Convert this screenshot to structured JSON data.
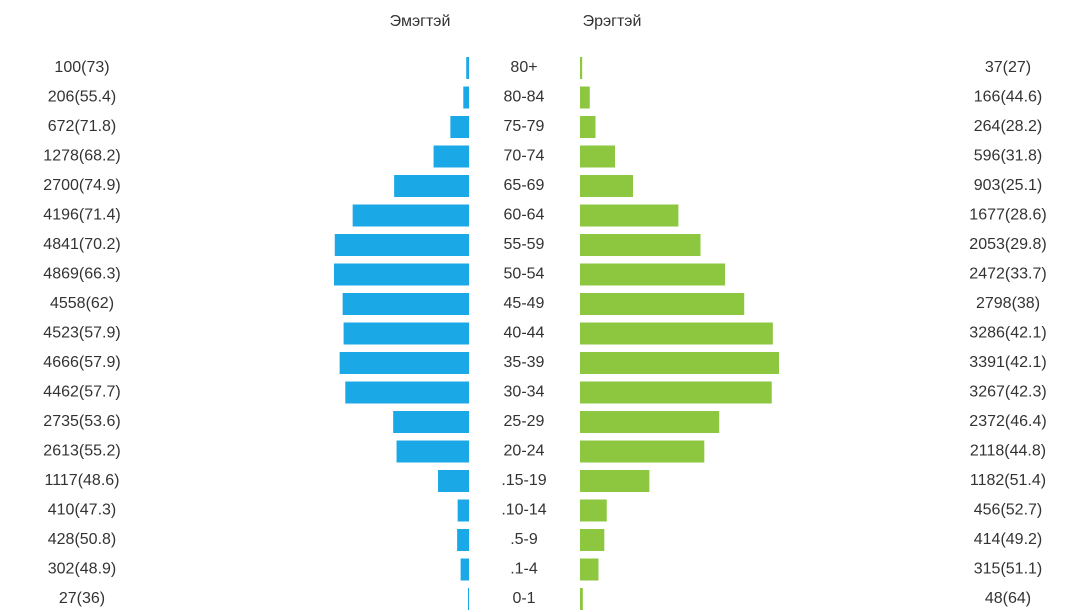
{
  "chart_data": {
    "type": "pyramid",
    "categories": [
      "80+",
      "80-84",
      "75-79",
      "70-74",
      "65-69",
      "60-64",
      "55-59",
      "50-54",
      "45-49",
      "40-44",
      "35-39",
      "30-34",
      "25-29",
      "20-24",
      ".15-19",
      ".10-14",
      ".5-9",
      ".1-4",
      "0-1"
    ],
    "series": [
      {
        "name": "Эмэгтэй",
        "color": "#1aa8e6",
        "values": [
          100,
          206,
          672,
          1278,
          2700,
          4196,
          4841,
          4869,
          4558,
          4523,
          4666,
          4462,
          2735,
          2613,
          1117,
          410,
          428,
          302,
          27
        ],
        "value_labels": [
          "100(73)",
          "206(55.4)",
          "672(71.8)",
          "1278(68.2)",
          "2700(74.9)",
          "4196(71.4)",
          "4841(70.2)",
          "4869(66.3)",
          "4558(62)",
          "4523(57.9)",
          "4666(57.9)",
          "4462(57.7)",
          "2735(53.6)",
          "2613(55.2)",
          "1117(48.6)",
          "410(47.3)",
          "428(50.8)",
          "302(48.9)",
          "27(36)"
        ]
      },
      {
        "name": "Эрэгтэй",
        "color": "#8dc63f",
        "values": [
          37,
          166,
          264,
          596,
          903,
          1677,
          2053,
          2472,
          2798,
          3286,
          3391,
          3267,
          2372,
          2118,
          1182,
          456,
          414,
          315,
          48
        ],
        "value_labels": [
          "37(27)",
          "166(44.6)",
          "264(28.2)",
          "596(31.8)",
          "903(25.1)",
          "1677(28.6)",
          "2053(29.8)",
          "2472(33.7)",
          "2798(38)",
          "3286(42.1)",
          "3391(42.1)",
          "3267(42.3)",
          "2372(46.4)",
          "2118(44.8)",
          "1182(51.4)",
          "456(52.7)",
          "414(49.2)",
          "315(51.1)",
          "48(64)"
        ]
      }
    ]
  }
}
